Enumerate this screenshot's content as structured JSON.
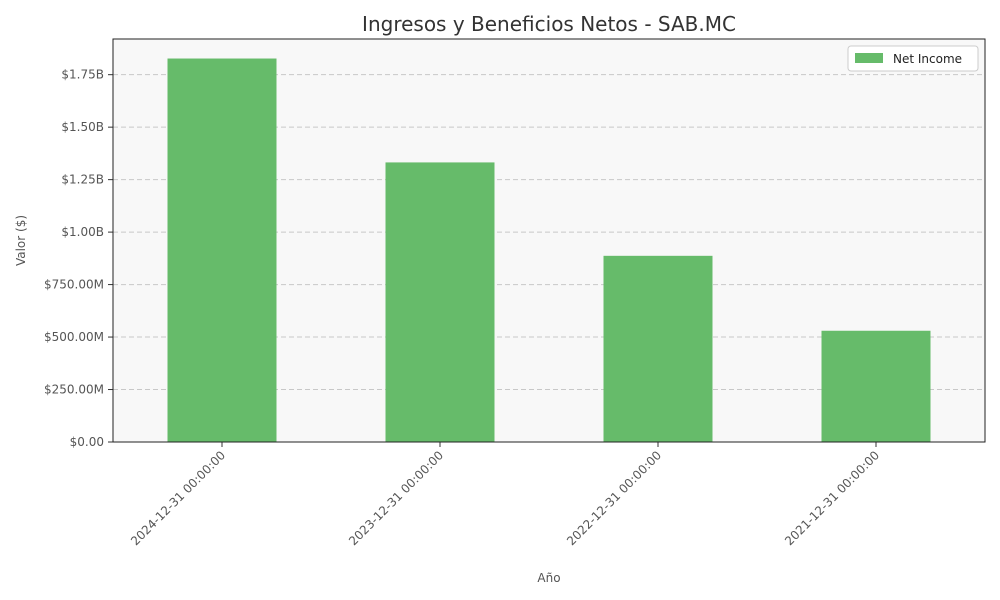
{
  "chart_data": {
    "type": "bar",
    "title": "Ingresos y Beneficios Netos - SAB.MC",
    "xlabel": "Año",
    "ylabel": "Valor ($)",
    "categories": [
      "2024-12-31 00:00:00",
      "2023-12-31 00:00:00",
      "2022-12-31 00:00:00",
      "2021-12-31 00:00:00"
    ],
    "series": [
      {
        "name": "Net Income",
        "color": "#66bb6a",
        "values": [
          1827000000,
          1332000000,
          887000000,
          530000000
        ]
      }
    ],
    "ylim": [
      0,
      1920000000
    ],
    "yticks": [
      0,
      250000000,
      500000000,
      750000000,
      1000000000,
      1250000000,
      1500000000,
      1750000000
    ],
    "ytick_labels": [
      "$0.00",
      "$250.00M",
      "$500.00M",
      "$750.00M",
      "$1.00B",
      "$1.25B",
      "$1.50B",
      "$1.75B"
    ],
    "grid": true,
    "legend_position": "top-right",
    "plot_background": "#f8f8f8"
  }
}
